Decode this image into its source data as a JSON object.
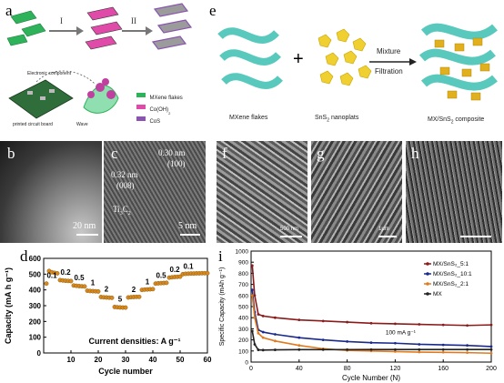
{
  "figure": {
    "panel_a": {
      "label": "a",
      "step1": "I",
      "step2": "II",
      "legend": [
        "MXene flakes",
        "Co(OH)",
        "CoS"
      ],
      "legend_colors": [
        "#2fb35a",
        "#e04aa8",
        "#8a55b0"
      ],
      "legend_subscripts": [
        "",
        "2",
        ""
      ],
      "circuit_text": [
        "Electronic component",
        "printed circuit board",
        "Wave"
      ]
    },
    "panel_e": {
      "label": "e",
      "plus": "+",
      "arrow_top": "Mixture",
      "arrow_bottom": "Filtration",
      "caption_mxene": "MXene flakes",
      "caption_sns2": "SnS",
      "caption_sns2_sub": "2",
      "caption_sns2_rest": " nanoplats",
      "caption_composite": "MX/SnS",
      "caption_composite_sub": "2",
      "caption_composite_rest": " composite"
    },
    "panel_b": {
      "label": "b",
      "scale": "20 nm"
    },
    "panel_c": {
      "label": "c",
      "scale": "5 nm",
      "ann1_a": "0.30 nm",
      "ann1_b": "(100)",
      "ann2_a": "0.32 nm",
      "ann2_b": "(008)",
      "ann3": "Ti",
      "ann3_sub1": "3",
      "ann3_mid": "C",
      "ann3_sub2": "2"
    },
    "panel_f": {
      "label": "f",
      "scale": "500 nm"
    },
    "panel_g": {
      "label": "g",
      "scale": "1μm"
    },
    "panel_h": {
      "label": "h"
    }
  },
  "chart_data": [
    {
      "type": "scatter",
      "panel": "d",
      "ylabel": "Capacity (mA h g⁻¹)",
      "xlabel": "Cycle number",
      "annotation": "Current densities: A g⁻¹",
      "xlim": [
        0,
        60
      ],
      "ylim": [
        0,
        600
      ],
      "xticks": [
        "10",
        "20",
        "30",
        "40",
        "50",
        "60"
      ],
      "yticks": [
        "0",
        "100",
        "200",
        "300",
        "400",
        "500",
        "600"
      ],
      "rate_labels": [
        "0.1",
        "0.2",
        "0.5",
        "1",
        "2",
        "5",
        "2",
        "1",
        "0.5",
        "0.2",
        "0.1"
      ],
      "color": "#d98a1e",
      "segments": [
        {
          "x": [
            1,
            2,
            3,
            4,
            5
          ],
          "y": [
            440,
            520,
            512,
            508,
            505
          ]
        },
        {
          "x": [
            6,
            7,
            8,
            9,
            10
          ],
          "y": [
            462,
            460,
            458,
            457,
            456
          ]
        },
        {
          "x": [
            11,
            12,
            13,
            14,
            15
          ],
          "y": [
            428,
            426,
            424,
            423,
            422
          ]
        },
        {
          "x": [
            16,
            17,
            18,
            19,
            20
          ],
          "y": [
            395,
            393,
            392,
            391,
            390
          ]
        },
        {
          "x": [
            21,
            22,
            23,
            24,
            25
          ],
          "y": [
            355,
            353,
            352,
            351,
            350
          ]
        },
        {
          "x": [
            26,
            27,
            28,
            29,
            30
          ],
          "y": [
            292,
            290,
            289,
            288,
            288
          ]
        },
        {
          "x": [
            31,
            32,
            33,
            34,
            35
          ],
          "y": [
            352,
            354,
            355,
            356,
            356
          ]
        },
        {
          "x": [
            36,
            37,
            38,
            39,
            40
          ],
          "y": [
            400,
            402,
            403,
            404,
            405
          ]
        },
        {
          "x": [
            41,
            42,
            43,
            44,
            45
          ],
          "y": [
            440,
            442,
            443,
            444,
            445
          ]
        },
        {
          "x": [
            46,
            47,
            48,
            49,
            50
          ],
          "y": [
            478,
            480,
            482,
            483,
            484
          ]
        },
        {
          "x": [
            51,
            52,
            53,
            54,
            55,
            56,
            57,
            58,
            59,
            60
          ],
          "y": [
            500,
            502,
            503,
            504,
            504,
            505,
            505,
            506,
            506,
            506
          ]
        }
      ]
    },
    {
      "type": "line",
      "panel": "i",
      "ylabel": "Specific Capacity (mAh g⁻¹)",
      "xlabel": "Cycle Number (N)",
      "annotation": "100 mA g⁻¹",
      "xlim": [
        0,
        200
      ],
      "ylim": [
        0,
        1000
      ],
      "xticks": [
        "0",
        "40",
        "80",
        "120",
        "160",
        "200"
      ],
      "yticks": [
        "0",
        "100",
        "200",
        "300",
        "400",
        "500",
        "600",
        "700",
        "800",
        "900",
        "1000"
      ],
      "legend": "top-right",
      "series": [
        {
          "name": "MX/SnS₂_5:1",
          "color": "#8b1a1a",
          "x": [
            1,
            3,
            6,
            10,
            20,
            40,
            60,
            80,
            100,
            120,
            140,
            160,
            180,
            200
          ],
          "y": [
            870,
            600,
            430,
            415,
            400,
            380,
            370,
            360,
            350,
            345,
            340,
            335,
            330,
            335
          ]
        },
        {
          "name": "MX/SnS₂_10:1",
          "color": "#1a2a8b",
          "x": [
            1,
            3,
            6,
            10,
            20,
            40,
            60,
            80,
            100,
            120,
            140,
            160,
            180,
            200
          ],
          "y": [
            650,
            450,
            290,
            270,
            250,
            220,
            200,
            185,
            175,
            170,
            160,
            155,
            150,
            140
          ]
        },
        {
          "name": "MX/SnS₂_2:1",
          "color": "#e07a1e",
          "x": [
            1,
            3,
            6,
            10,
            20,
            40,
            60,
            80,
            100,
            120,
            140,
            160,
            180,
            200
          ],
          "y": [
            600,
            400,
            260,
            220,
            190,
            150,
            120,
            105,
            100,
            95,
            90,
            88,
            85,
            80
          ]
        },
        {
          "name": "MX",
          "color": "#222222",
          "x": [
            1,
            3,
            6,
            10,
            20,
            40,
            60,
            80,
            100,
            120,
            140,
            160,
            180,
            200
          ],
          "y": [
            280,
            160,
            110,
            108,
            110,
            112,
            112,
            112,
            113,
            113,
            113,
            113,
            113,
            113
          ]
        }
      ]
    }
  ]
}
